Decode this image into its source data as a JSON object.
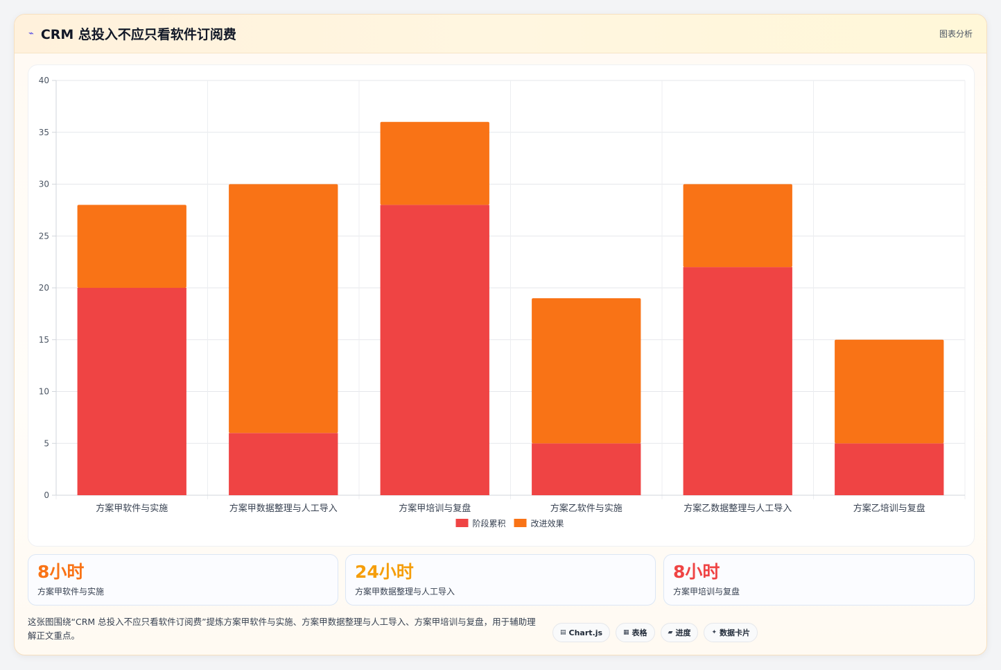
{
  "header": {
    "icon": "⌁",
    "title": "CRM 总投入不应只看软件订阅费",
    "tag": "图表分析"
  },
  "chart_data": {
    "type": "bar",
    "stacked": true,
    "categories": [
      "方案甲软件与实施",
      "方案甲数据整理与人工导入",
      "方案甲培训与复盘",
      "方案乙软件与实施",
      "方案乙数据整理与人工导入",
      "方案乙培训与复盘"
    ],
    "series": [
      {
        "name": "阶段累积",
        "color": "#ef4444",
        "values": [
          20,
          6,
          28,
          5,
          22,
          5
        ]
      },
      {
        "name": "改进效果",
        "color": "#f97316",
        "values": [
          8,
          24,
          8,
          14,
          8,
          10
        ]
      }
    ],
    "ylim": [
      0,
      40
    ],
    "yticks": [
      0,
      5,
      10,
      15,
      20,
      25,
      30,
      35,
      40
    ],
    "grid": true,
    "legend": "bottom"
  },
  "kpis": [
    {
      "value": "8小时",
      "label": "方案甲软件与实施",
      "color": "#f97316"
    },
    {
      "value": "24小时",
      "label": "方案甲数据整理与人工导入",
      "color": "#f59e0b"
    },
    {
      "value": "8小时",
      "label": "方案甲培训与复盘",
      "color": "#ef4444"
    }
  ],
  "description": "这张图围绕“CRM 总投入不应只看软件订阅费”提炼方案甲软件与实施、方案甲数据整理与人工导入、方案甲培训与复盘，用于辅助理解正文重点。",
  "chips": [
    {
      "icon": "▤",
      "label": "Chart.js"
    },
    {
      "icon": "▦",
      "label": "表格"
    },
    {
      "icon": "▰",
      "label": "进度"
    },
    {
      "icon": "✦",
      "label": "数据卡片"
    }
  ]
}
